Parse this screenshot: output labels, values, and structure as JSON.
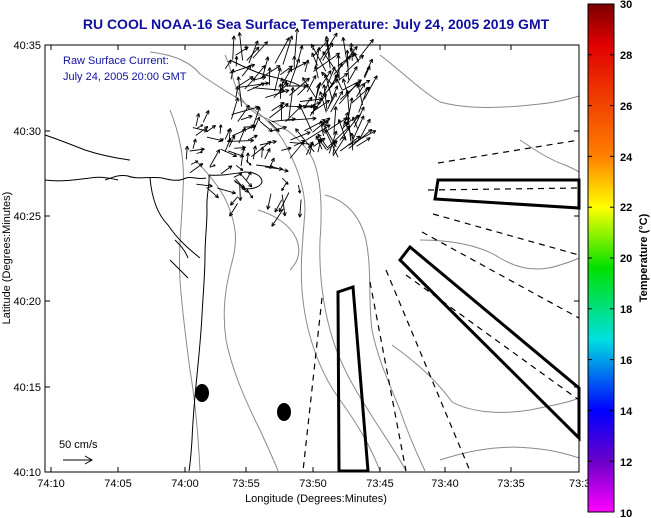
{
  "title": "RU COOL  NOAA-16  Sea Surface Temperature:  July 24, 2005 2019 GMT",
  "annotation": {
    "line1": "Raw Surface Current:",
    "line2": "July 24, 2005 20:00 GMT"
  },
  "scale_label": "50 cm/s",
  "axes": {
    "xlabel": "Longitude (Degrees:Minutes)",
    "ylabel": "Latitude (Degrees:Minutes)",
    "xticks": [
      "74:10",
      "74:05",
      "74:00",
      "73:55",
      "73:50",
      "73:45",
      "73:40",
      "73:35",
      "73:3"
    ],
    "yticks": [
      "40:35",
      "40:30",
      "40:25",
      "40:20",
      "40:15",
      "40:10"
    ]
  },
  "colorbar": {
    "label": "Temperature (°C)",
    "ticks": [
      "30",
      "28",
      "26",
      "24",
      "22",
      "20",
      "18",
      "16",
      "14",
      "12",
      "10"
    ],
    "min": 10,
    "max": 30,
    "colors": {
      "top": "#7a0000",
      "red": "#e00000",
      "orange": "#ff8000",
      "yellow": "#ffff00",
      "green": "#00e000",
      "cyan": "#00e0e0",
      "blue": "#0000ff",
      "indigo": "#6a00c8",
      "bottom": "#ff00ff"
    }
  },
  "colors": {
    "title": "#1010a0",
    "coast": "#000000",
    "isobath": "#8a8a8a",
    "vector": "#000000"
  },
  "icons": {
    "markers": "buoy-marker",
    "vectors": "current-vector-arrow"
  }
}
